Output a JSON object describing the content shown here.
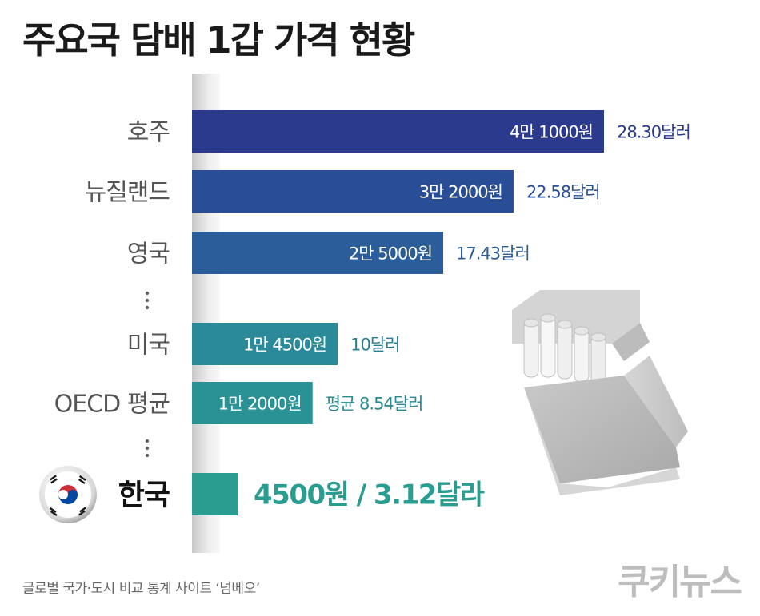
{
  "chart_data": {
    "type": "bar",
    "orientation": "horizontal",
    "title": "주요국 담배 1갑 가격 현황",
    "categories": [
      "호주",
      "뉴질랜드",
      "영국",
      "미국",
      "OECD 평균",
      "한국"
    ],
    "values": [
      41000,
      32000,
      25000,
      14500,
      12000,
      4500
    ],
    "bar_labels": [
      "4만 1000원",
      "3만 2000원",
      "2만 5000원",
      "1만 4500원",
      "1만 2000원",
      ""
    ],
    "value_labels": [
      "28.30달러",
      "22.58달러",
      "17.43달러",
      "10달러",
      "평균 8.54달러",
      "4500원 / 3.12달라"
    ],
    "unit": "원",
    "highlight_category": "한국",
    "ellipsis_after": [
      "영국",
      "OECD 평균"
    ],
    "bar_colors": [
      "#2b3a8c",
      "#2a4e96",
      "#2b5d9a",
      "#2a8a9a",
      "#2a9294",
      "#2a9c90"
    ],
    "label_colors": [
      "#2b3a8c",
      "#2a4e96",
      "#2b5d9a",
      "#2a7f94",
      "#2a8a90",
      "#2a9c90"
    ],
    "ellipsis_text": "⋮",
    "xlim": [
      0,
      41000
    ],
    "grid": false,
    "legend": "none"
  },
  "source": "글로벌 국가·도시 비교 통계 사이트 ‘넘베오’",
  "brand": "쿠키뉴스",
  "icons": {
    "flag": "korea-flag-icon",
    "illustration": "cigarette-pack-icon"
  }
}
